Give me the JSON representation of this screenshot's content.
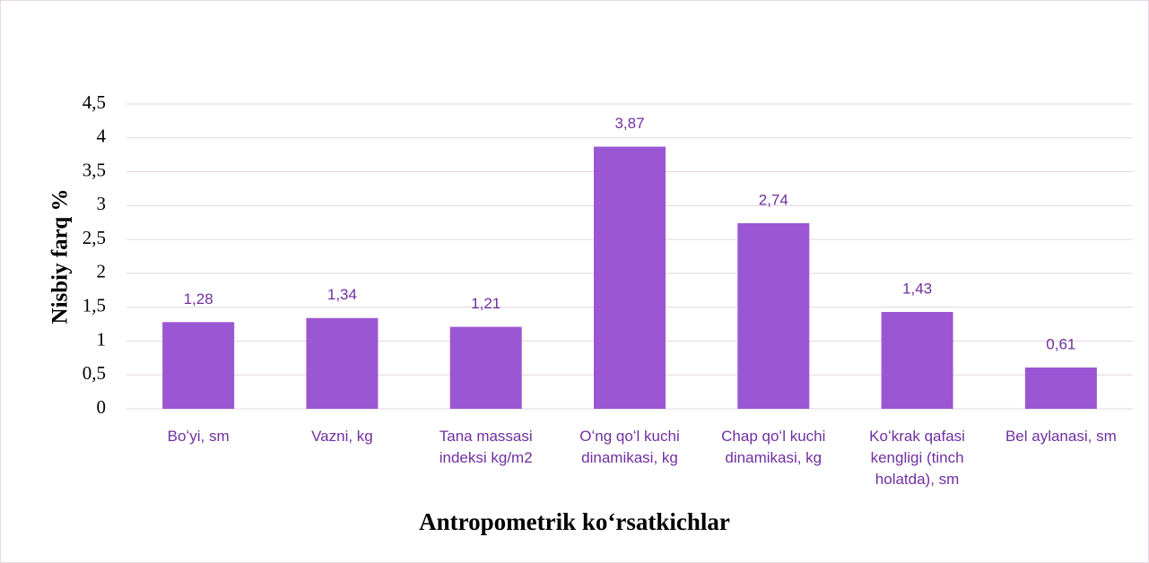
{
  "chart_data": {
    "type": "bar",
    "xlabel": "Antropometrik koʻrsatkichlar",
    "ylabel": "Nisbiy farq %",
    "categories": [
      "Boʻyi, sm",
      "Vazni, kg",
      "Tana massasi indeksi kg/m2",
      "Oʻng qoʻl kuchi dinamikasi, kg",
      "Chap qoʻl kuchi dinamikasi, kg",
      "Koʻkrak qafasi kengligi (tinch holatda), sm",
      "Bel aylanasi, sm"
    ],
    "values": [
      1.28,
      1.34,
      1.21,
      3.87,
      2.74,
      1.43,
      0.61
    ],
    "value_labels": [
      "1,28",
      "1,34",
      "1,21",
      "3,87",
      "2,74",
      "1,43",
      "0,61"
    ],
    "color": "#9b57d3",
    "ylim": [
      0,
      4.5
    ],
    "yticks": [
      0,
      {
        "value": 0.5,
        "label": "0,5"
      },
      1,
      {
        "value": 1.5,
        "label": "1,5"
      },
      2,
      {
        "value": 2.5,
        "label": "2,5"
      },
      3,
      {
        "value": 3.5,
        "label": "3,5"
      },
      4,
      {
        "value": 4.5,
        "label": "4,5"
      }
    ],
    "grid": true
  }
}
